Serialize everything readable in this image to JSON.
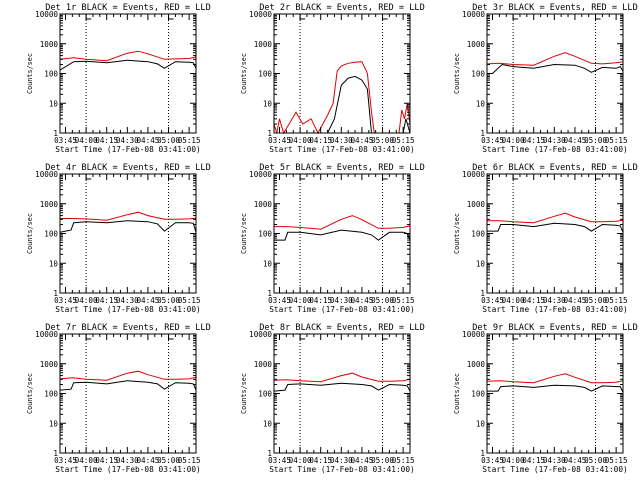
{
  "figure": {
    "background": "#ffffff"
  },
  "chart_data": [
    {
      "type": "line",
      "panel": 1,
      "title": "Det 1r BLACK = Events, RED = LLD",
      "xlabel": "Start Time (17-Feb-08 03:41:00)",
      "ylabel": "Counts/sec",
      "xlim": [
        "03:41",
        "05:20"
      ],
      "ylim": [
        1,
        10000
      ],
      "yscale": "log",
      "x_ticks": [
        "03:45",
        "04:00",
        "04:15",
        "04:30",
        "04:45",
        "05:00",
        "05:15"
      ],
      "y_ticks": [
        "1",
        "10",
        "100",
        "1000",
        "10000"
      ],
      "vertical_markers": [
        "04:00",
        "05:00"
      ],
      "series": [
        {
          "color": "#000000",
          "x": [
            "03:41",
            "03:51",
            "04:00",
            "04:15",
            "04:30",
            "04:45",
            "04:52",
            "04:57",
            "05:05",
            "05:15",
            "05:18",
            "05:20"
          ],
          "y": [
            130,
            250,
            260,
            230,
            280,
            250,
            210,
            150,
            250,
            240,
            230,
            150
          ]
        },
        {
          "color": "#dd0000",
          "x": [
            "03:41",
            "03:51",
            "04:00",
            "04:15",
            "04:30",
            "04:38",
            "04:45",
            "04:57",
            "05:05",
            "05:15",
            "05:20"
          ],
          "y": [
            300,
            340,
            300,
            270,
            480,
            560,
            460,
            300,
            310,
            320,
            360
          ]
        }
      ]
    },
    {
      "type": "line",
      "panel": 2,
      "title": "Det 2r BLACK = Events, RED = LLD",
      "xlabel": "Start Time (17-Feb-08 03:41:00)",
      "ylabel": "Counts/sec",
      "xlim": [
        "03:41",
        "05:20"
      ],
      "ylim": [
        1,
        10000
      ],
      "yscale": "log",
      "x_ticks": [
        "03:45",
        "04:00",
        "04:15",
        "04:30",
        "04:45",
        "05:00",
        "05:15"
      ],
      "y_ticks": [
        "1",
        "10",
        "100",
        "1000",
        "10000"
      ],
      "vertical_markers": [
        "04:00",
        "05:00"
      ],
      "series": [
        {
          "color": "#000000",
          "x": [
            "03:41",
            "03:50",
            "04:10",
            "04:20",
            "04:25",
            "04:30",
            "04:35",
            "04:40",
            "04:45",
            "04:49",
            "04:52",
            "05:00",
            "05:15",
            "05:17",
            "05:20"
          ],
          "y": [
            1,
            1,
            1,
            1,
            3,
            40,
            70,
            80,
            60,
            30,
            1,
            1,
            1,
            3,
            1
          ]
        },
        {
          "color": "#dd0000",
          "x": [
            "03:41",
            "03:43",
            "03:45",
            "03:48",
            "03:52",
            "03:57",
            "04:02",
            "04:08",
            "04:13",
            "04:20",
            "04:24",
            "04:27",
            "04:30",
            "04:35",
            "04:40",
            "04:45",
            "04:49",
            "04:52",
            "04:54",
            "05:00",
            "05:12",
            "05:14",
            "05:16",
            "05:18",
            "05:20"
          ],
          "y": [
            2,
            1,
            3,
            1,
            2,
            5,
            2,
            3,
            1,
            4,
            10,
            120,
            180,
            220,
            240,
            250,
            100,
            5,
            1,
            1,
            1,
            6,
            3,
            10,
            2
          ]
        }
      ]
    },
    {
      "type": "line",
      "panel": 3,
      "title": "Det 3r BLACK = Events, RED = LLD",
      "xlabel": "Start Time (17-Feb-08 03:41:00)",
      "ylabel": "Counts/sec",
      "xlim": [
        "03:41",
        "05:20"
      ],
      "ylim": [
        1,
        10000
      ],
      "yscale": "log",
      "x_ticks": [
        "03:45",
        "04:00",
        "04:15",
        "04:30",
        "04:45",
        "05:00",
        "05:15"
      ],
      "y_ticks": [
        "1",
        "10",
        "100",
        "1000",
        "10000"
      ],
      "vertical_markers": [
        "04:00",
        "05:00"
      ],
      "series": [
        {
          "color": "#000000",
          "x": [
            "03:41",
            "03:45",
            "03:52",
            "04:00",
            "04:15",
            "04:30",
            "04:45",
            "04:52",
            "04:57",
            "05:05",
            "05:15",
            "05:18",
            "05:20"
          ],
          "y": [
            100,
            100,
            200,
            170,
            150,
            200,
            190,
            150,
            110,
            160,
            150,
            170,
            120
          ]
        },
        {
          "color": "#dd0000",
          "x": [
            "03:41",
            "03:50",
            "04:00",
            "04:15",
            "04:30",
            "04:38",
            "04:45",
            "04:57",
            "05:05",
            "05:15",
            "05:20"
          ],
          "y": [
            210,
            220,
            200,
            190,
            380,
            500,
            380,
            220,
            210,
            230,
            250
          ]
        }
      ]
    },
    {
      "type": "line",
      "panel": 4,
      "title": "Det 4r BLACK = Events, RED = LLD",
      "xlabel": "Start Time (17-Feb-08 03:41:00)",
      "ylabel": "Counts/sec",
      "xlim": [
        "03:41",
        "05:20"
      ],
      "ylim": [
        1,
        10000
      ],
      "yscale": "log",
      "x_ticks": [
        "03:45",
        "04:00",
        "04:15",
        "04:30",
        "04:45",
        "05:00",
        "05:15"
      ],
      "y_ticks": [
        "1",
        "10",
        "100",
        "1000",
        "10000"
      ],
      "vertical_markers": [
        "04:00",
        "05:00"
      ],
      "series": [
        {
          "color": "#000000",
          "x": [
            "03:41",
            "03:49",
            "03:51",
            "04:00",
            "04:15",
            "04:30",
            "04:45",
            "04:52",
            "04:57",
            "05:05",
            "05:15",
            "05:18",
            "05:20"
          ],
          "y": [
            110,
            130,
            230,
            250,
            230,
            270,
            250,
            210,
            120,
            230,
            230,
            220,
            110
          ]
        },
        {
          "color": "#dd0000",
          "x": [
            "03:41",
            "03:50",
            "04:00",
            "04:15",
            "04:30",
            "04:38",
            "04:45",
            "04:57",
            "05:05",
            "05:15",
            "05:20"
          ],
          "y": [
            320,
            320,
            310,
            280,
            430,
            520,
            400,
            300,
            300,
            310,
            330
          ]
        }
      ]
    },
    {
      "type": "line",
      "panel": 5,
      "title": "Det 5r BLACK = Events, RED = LLD",
      "xlabel": "Start Time (17-Feb-08 03:41:00)",
      "ylabel": "Counts/sec",
      "xlim": [
        "03:41",
        "05:20"
      ],
      "ylim": [
        1,
        10000
      ],
      "yscale": "log",
      "x_ticks": [
        "03:45",
        "04:00",
        "04:15",
        "04:30",
        "04:45",
        "05:00",
        "05:15"
      ],
      "y_ticks": [
        "1",
        "10",
        "100",
        "1000",
        "10000"
      ],
      "vertical_markers": [
        "04:00",
        "05:00"
      ],
      "series": [
        {
          "color": "#000000",
          "x": [
            "03:41",
            "03:49",
            "03:51",
            "04:00",
            "04:15",
            "04:30",
            "04:45",
            "04:52",
            "04:57",
            "05:05",
            "05:15",
            "05:18",
            "05:20"
          ],
          "y": [
            60,
            60,
            110,
            110,
            90,
            130,
            110,
            90,
            60,
            110,
            110,
            100,
            60
          ]
        },
        {
          "color": "#dd0000",
          "x": [
            "03:41",
            "03:50",
            "04:00",
            "04:15",
            "04:30",
            "04:38",
            "04:45",
            "04:57",
            "05:05",
            "05:15",
            "05:20"
          ],
          "y": [
            170,
            170,
            160,
            140,
            300,
            400,
            290,
            150,
            150,
            160,
            180
          ]
        }
      ]
    },
    {
      "type": "line",
      "panel": 6,
      "title": "Det 6r BLACK = Events, RED = LLD",
      "xlabel": "Start Time (17-Feb-08 03:41:00)",
      "ylabel": "Counts/sec",
      "xlim": [
        "03:41",
        "05:20"
      ],
      "ylim": [
        1,
        10000
      ],
      "yscale": "log",
      "x_ticks": [
        "03:45",
        "04:00",
        "04:15",
        "04:30",
        "04:45",
        "05:00",
        "05:15"
      ],
      "y_ticks": [
        "1",
        "10",
        "100",
        "1000",
        "10000"
      ],
      "vertical_markers": [
        "04:00",
        "05:00"
      ],
      "series": [
        {
          "color": "#000000",
          "x": [
            "03:41",
            "03:49",
            "03:51",
            "04:00",
            "04:15",
            "04:30",
            "04:45",
            "04:52",
            "04:57",
            "05:05",
            "05:15",
            "05:18",
            "05:20"
          ],
          "y": [
            120,
            120,
            200,
            200,
            170,
            220,
            200,
            170,
            120,
            200,
            190,
            180,
            110
          ]
        },
        {
          "color": "#dd0000",
          "x": [
            "03:41",
            "03:50",
            "04:00",
            "04:15",
            "04:30",
            "04:38",
            "04:45",
            "04:57",
            "05:05",
            "05:15",
            "05:20"
          ],
          "y": [
            270,
            270,
            250,
            230,
            380,
            480,
            360,
            250,
            250,
            260,
            280
          ]
        }
      ]
    },
    {
      "type": "line",
      "panel": 7,
      "title": "Det 7r BLACK = Events, RED = LLD",
      "xlabel": "Start Time (17-Feb-08 03:41:00)",
      "ylabel": "Counts/sec",
      "xlim": [
        "03:41",
        "05:20"
      ],
      "ylim": [
        1,
        10000
      ],
      "yscale": "log",
      "x_ticks": [
        "03:45",
        "04:00",
        "04:15",
        "04:30",
        "04:45",
        "05:00",
        "05:15"
      ],
      "y_ticks": [
        "1",
        "10",
        "100",
        "1000",
        "10000"
      ],
      "vertical_markers": [
        "04:00",
        "05:00"
      ],
      "series": [
        {
          "color": "#000000",
          "x": [
            "03:41",
            "03:49",
            "03:51",
            "04:00",
            "04:15",
            "04:30",
            "04:45",
            "04:52",
            "04:57",
            "05:05",
            "05:15",
            "05:18",
            "05:20"
          ],
          "y": [
            130,
            140,
            230,
            240,
            210,
            270,
            240,
            210,
            140,
            230,
            220,
            210,
            130
          ]
        },
        {
          "color": "#dd0000",
          "x": [
            "03:41",
            "03:50",
            "04:00",
            "04:15",
            "04:30",
            "04:38",
            "04:45",
            "04:57",
            "05:05",
            "05:15",
            "05:20"
          ],
          "y": [
            310,
            340,
            300,
            280,
            480,
            560,
            430,
            300,
            300,
            310,
            350
          ]
        }
      ]
    },
    {
      "type": "line",
      "panel": 8,
      "title": "Det 8r BLACK = Events, RED = LLD",
      "xlabel": "Start Time (17-Feb-08 03:41:00)",
      "ylabel": "Counts/sec",
      "xlim": [
        "03:41",
        "05:20"
      ],
      "ylim": [
        1,
        10000
      ],
      "yscale": "log",
      "x_ticks": [
        "03:45",
        "04:00",
        "04:15",
        "04:30",
        "04:45",
        "05:00",
        "05:15"
      ],
      "y_ticks": [
        "1",
        "10",
        "100",
        "1000",
        "10000"
      ],
      "vertical_markers": [
        "04:00",
        "05:00"
      ],
      "series": [
        {
          "color": "#000000",
          "x": [
            "03:41",
            "03:49",
            "03:51",
            "04:00",
            "04:15",
            "04:30",
            "04:45",
            "04:52",
            "04:57",
            "05:05",
            "05:15",
            "05:18",
            "05:20"
          ],
          "y": [
            120,
            130,
            200,
            210,
            190,
            220,
            200,
            180,
            130,
            200,
            190,
            180,
            120
          ]
        },
        {
          "color": "#dd0000",
          "x": [
            "03:41",
            "03:50",
            "04:00",
            "04:15",
            "04:30",
            "04:38",
            "04:45",
            "04:57",
            "05:05",
            "05:15",
            "05:20"
          ],
          "y": [
            280,
            290,
            270,
            250,
            400,
            480,
            360,
            260,
            260,
            270,
            300
          ]
        }
      ]
    },
    {
      "type": "line",
      "panel": 9,
      "title": "Det 9r BLACK = Events, RED = LLD",
      "xlabel": "Start Time (17-Feb-08 03:41:00)",
      "ylabel": "Counts/sec",
      "xlim": [
        "03:41",
        "05:20"
      ],
      "ylim": [
        1,
        10000
      ],
      "yscale": "log",
      "x_ticks": [
        "03:45",
        "04:00",
        "04:15",
        "04:30",
        "04:45",
        "05:00",
        "05:15"
      ],
      "y_ticks": [
        "1",
        "10",
        "100",
        "1000",
        "10000"
      ],
      "vertical_markers": [
        "04:00",
        "05:00"
      ],
      "series": [
        {
          "color": "#000000",
          "x": [
            "03:41",
            "03:49",
            "03:51",
            "04:00",
            "04:15",
            "04:30",
            "04:45",
            "04:52",
            "04:57",
            "05:05",
            "05:15",
            "05:18",
            "05:20"
          ],
          "y": [
            120,
            120,
            170,
            180,
            160,
            190,
            180,
            160,
            120,
            180,
            170,
            170,
            110
          ]
        },
        {
          "color": "#dd0000",
          "x": [
            "03:41",
            "03:50",
            "04:00",
            "04:15",
            "04:30",
            "04:38",
            "04:45",
            "04:57",
            "05:05",
            "05:15",
            "05:20"
          ],
          "y": [
            260,
            270,
            250,
            230,
            380,
            460,
            350,
            230,
            230,
            240,
            270
          ]
        }
      ]
    }
  ]
}
